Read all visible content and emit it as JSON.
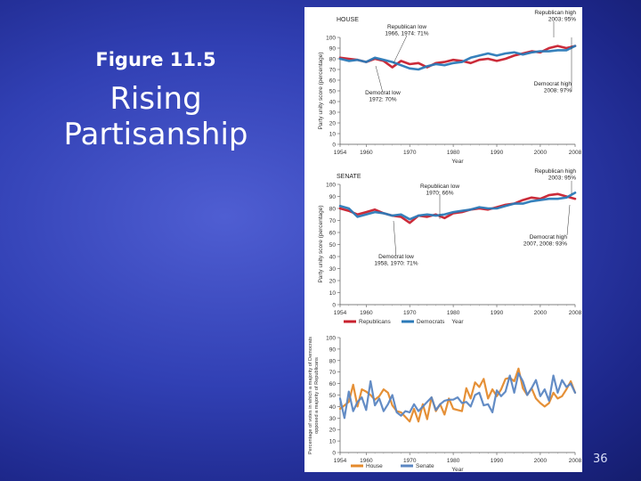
{
  "slide": {
    "figure_label": "Figure 11.5",
    "title_line1": "Rising",
    "title_line2": "Partisanship",
    "page_number": "36",
    "background_color": "#3140b4"
  },
  "chart_data": [
    {
      "type": "line",
      "panel_label": "HOUSE",
      "ylabel": "Party unity score (percentage)",
      "xlabel": "Year",
      "xlim": [
        1954,
        2008
      ],
      "ylim": [
        0,
        100
      ],
      "x_ticks": [
        1954,
        1960,
        1970,
        1980,
        1990,
        2000,
        2008
      ],
      "y_ticks": [
        0,
        10,
        20,
        30,
        40,
        50,
        60,
        70,
        80,
        90,
        100
      ],
      "annotations": [
        {
          "line1": "Republican high",
          "line2": "2003: 95%"
        },
        {
          "line1": "Republican low",
          "line2": "1966, 1974: 71%"
        },
        {
          "line1": "Democrat high",
          "line2": "2008: 97%"
        },
        {
          "line1": "Democrat low",
          "line2": "1972: 70%"
        }
      ],
      "series": [
        {
          "name": "Republicans",
          "color": "#c8202e",
          "x": [
            1954,
            1956,
            1958,
            1960,
            1962,
            1964,
            1966,
            1968,
            1970,
            1972,
            1974,
            1976,
            1978,
            1980,
            1982,
            1984,
            1986,
            1988,
            1990,
            1992,
            1994,
            1996,
            1998,
            2000,
            2002,
            2004,
            2006,
            2008
          ],
          "y": [
            81,
            80,
            79,
            77,
            80,
            78,
            72,
            78,
            75,
            76,
            72,
            76,
            77,
            79,
            78,
            76,
            79,
            80,
            78,
            80,
            83,
            85,
            87,
            86,
            90,
            92,
            90,
            92
          ]
        },
        {
          "name": "Democrats",
          "color": "#2b7ab8",
          "x": [
            1954,
            1956,
            1958,
            1960,
            1962,
            1964,
            1966,
            1968,
            1970,
            1972,
            1974,
            1976,
            1978,
            1980,
            1982,
            1984,
            1986,
            1988,
            1990,
            1992,
            1994,
            1996,
            1998,
            2000,
            2002,
            2004,
            2006,
            2008
          ],
          "y": [
            80,
            78,
            79,
            77,
            81,
            79,
            77,
            74,
            71,
            70,
            73,
            75,
            74,
            76,
            77,
            81,
            83,
            85,
            83,
            85,
            86,
            84,
            86,
            87,
            87,
            88,
            88,
            92
          ]
        }
      ]
    },
    {
      "type": "line",
      "panel_label": "SENATE",
      "ylabel": "Party unity score (percentage)",
      "xlabel": "Year",
      "xlim": [
        1954,
        2008
      ],
      "ylim": [
        0,
        100
      ],
      "x_ticks": [
        1954,
        1960,
        1970,
        1980,
        1990,
        2000,
        2008
      ],
      "y_ticks": [
        0,
        10,
        20,
        30,
        40,
        50,
        60,
        70,
        80,
        90,
        100
      ],
      "annotations": [
        {
          "line1": "Republican high",
          "line2": "2003: 95%"
        },
        {
          "line1": "Republican low",
          "line2": "1970: 66%"
        },
        {
          "line1": "Democrat high",
          "line2": "2007, 2008: 93%"
        },
        {
          "line1": "Democrat low",
          "line2": "1958, 1970: 71%"
        }
      ],
      "series": [
        {
          "name": "Republicans",
          "color": "#c8202e",
          "x": [
            1954,
            1956,
            1958,
            1960,
            1962,
            1964,
            1966,
            1968,
            1970,
            1972,
            1974,
            1976,
            1978,
            1980,
            1982,
            1984,
            1986,
            1988,
            1990,
            1992,
            1994,
            1996,
            1998,
            2000,
            2002,
            2004,
            2006,
            2008
          ],
          "y": [
            80,
            78,
            75,
            77,
            79,
            76,
            74,
            73,
            68,
            74,
            73,
            75,
            72,
            76,
            77,
            79,
            80,
            79,
            81,
            83,
            84,
            87,
            89,
            88,
            91,
            92,
            90,
            88
          ]
        },
        {
          "name": "Democrats",
          "color": "#2b7ab8",
          "x": [
            1954,
            1956,
            1958,
            1960,
            1962,
            1964,
            1966,
            1968,
            1970,
            1972,
            1974,
            1976,
            1978,
            1980,
            1982,
            1984,
            1986,
            1988,
            1990,
            1992,
            1994,
            1996,
            1998,
            2000,
            2002,
            2004,
            2006,
            2008
          ],
          "y": [
            82,
            80,
            73,
            75,
            77,
            76,
            74,
            75,
            71,
            74,
            75,
            74,
            75,
            77,
            78,
            79,
            81,
            80,
            80,
            82,
            84,
            84,
            86,
            87,
            88,
            88,
            89,
            93
          ]
        }
      ],
      "legend": [
        "Republicans",
        "Democrats"
      ]
    },
    {
      "type": "line",
      "ylabel": "Percentage of votes in which a majority of Democrats opposed a majority of Republicans",
      "xlabel": "Year",
      "xlim": [
        1954,
        2008
      ],
      "ylim": [
        0,
        100
      ],
      "x_ticks": [
        1954,
        1960,
        1970,
        1980,
        1990,
        2000,
        2008
      ],
      "y_ticks": [
        0,
        10,
        20,
        30,
        40,
        50,
        60,
        70,
        80,
        90,
        100
      ],
      "series": [
        {
          "name": "House",
          "color": "#e48a2c",
          "x": [
            1954,
            1955,
            1956,
            1957,
            1958,
            1959,
            1960,
            1961,
            1962,
            1963,
            1964,
            1965,
            1966,
            1967,
            1968,
            1969,
            1970,
            1971,
            1972,
            1973,
            1974,
            1975,
            1976,
            1977,
            1978,
            1979,
            1980,
            1981,
            1982,
            1983,
            1984,
            1985,
            1986,
            1987,
            1988,
            1989,
            1990,
            1991,
            1992,
            1993,
            1994,
            1995,
            1996,
            1997,
            1998,
            1999,
            2000,
            2001,
            2002,
            2003,
            2004,
            2005,
            2006,
            2007,
            2008
          ],
          "y": [
            38,
            41,
            44,
            59,
            40,
            55,
            53,
            50,
            46,
            49,
            55,
            52,
            41,
            36,
            35,
            31,
            27,
            38,
            27,
            42,
            29,
            48,
            36,
            42,
            33,
            47,
            38,
            37,
            36,
            56,
            47,
            61,
            57,
            64,
            47,
            55,
            49,
            55,
            64,
            65,
            62,
            73,
            56,
            50,
            56,
            47,
            43,
            40,
            43,
            52,
            47,
            49,
            55,
            62,
            52
          ]
        },
        {
          "name": "Senate",
          "color": "#5b86c2",
          "x": [
            1954,
            1955,
            1956,
            1957,
            1958,
            1959,
            1960,
            1961,
            1962,
            1963,
            1964,
            1965,
            1966,
            1967,
            1968,
            1969,
            1970,
            1971,
            1972,
            1973,
            1974,
            1975,
            1976,
            1977,
            1978,
            1979,
            1980,
            1981,
            1982,
            1983,
            1984,
            1985,
            1986,
            1987,
            1988,
            1989,
            1990,
            1991,
            1992,
            1993,
            1994,
            1995,
            1996,
            1997,
            1998,
            1999,
            2000,
            2001,
            2002,
            2003,
            2004,
            2005,
            2006,
            2007,
            2008
          ],
          "y": [
            47,
            30,
            53,
            36,
            44,
            48,
            37,
            62,
            41,
            47,
            36,
            42,
            50,
            35,
            32,
            36,
            35,
            42,
            36,
            40,
            44,
            48,
            37,
            42,
            45,
            46,
            46,
            48,
            43,
            44,
            40,
            50,
            52,
            41,
            42,
            35,
            54,
            49,
            53,
            67,
            52,
            69,
            62,
            50,
            56,
            63,
            49,
            55,
            45,
            67,
            52,
            63,
            57,
            60,
            52
          ]
        }
      ],
      "legend": [
        "House",
        "Senate"
      ]
    }
  ]
}
